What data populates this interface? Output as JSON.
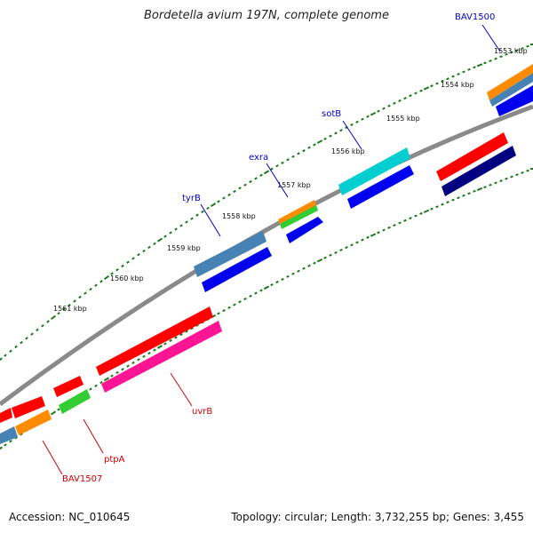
{
  "title": "Bordetella avium 197N, complete genome",
  "footer": {
    "accession": "Accession: NC_010645",
    "summary": "Topology: circular; Length: 3,732,255 bp; Genes: 3,455"
  },
  "colors": {
    "backbone": "#808080",
    "tick": "#1a7a1a",
    "label_forward": "#0000cc",
    "label_reverse": "#cc0000"
  },
  "ticks": [
    {
      "label": "1553 kbp"
    },
    {
      "label": "1554 kbp"
    },
    {
      "label": "1555 kbp"
    },
    {
      "label": "1556 kbp"
    },
    {
      "label": "1557 kbp"
    },
    {
      "label": "1558 kbp"
    },
    {
      "label": "1559 kbp"
    },
    {
      "label": "1560 kbp"
    },
    {
      "label": "1561 kbp"
    }
  ],
  "gene_labels": [
    {
      "text": "BAV1500",
      "strand": "forward"
    },
    {
      "text": "sotB",
      "strand": "forward"
    },
    {
      "text": "exra",
      "strand": "forward"
    },
    {
      "text": "tyrB",
      "strand": "forward"
    },
    {
      "text": "uvrB",
      "strand": "reverse"
    },
    {
      "text": "ptpA",
      "strand": "reverse"
    },
    {
      "text": "BAV1507",
      "strand": "reverse"
    }
  ]
}
